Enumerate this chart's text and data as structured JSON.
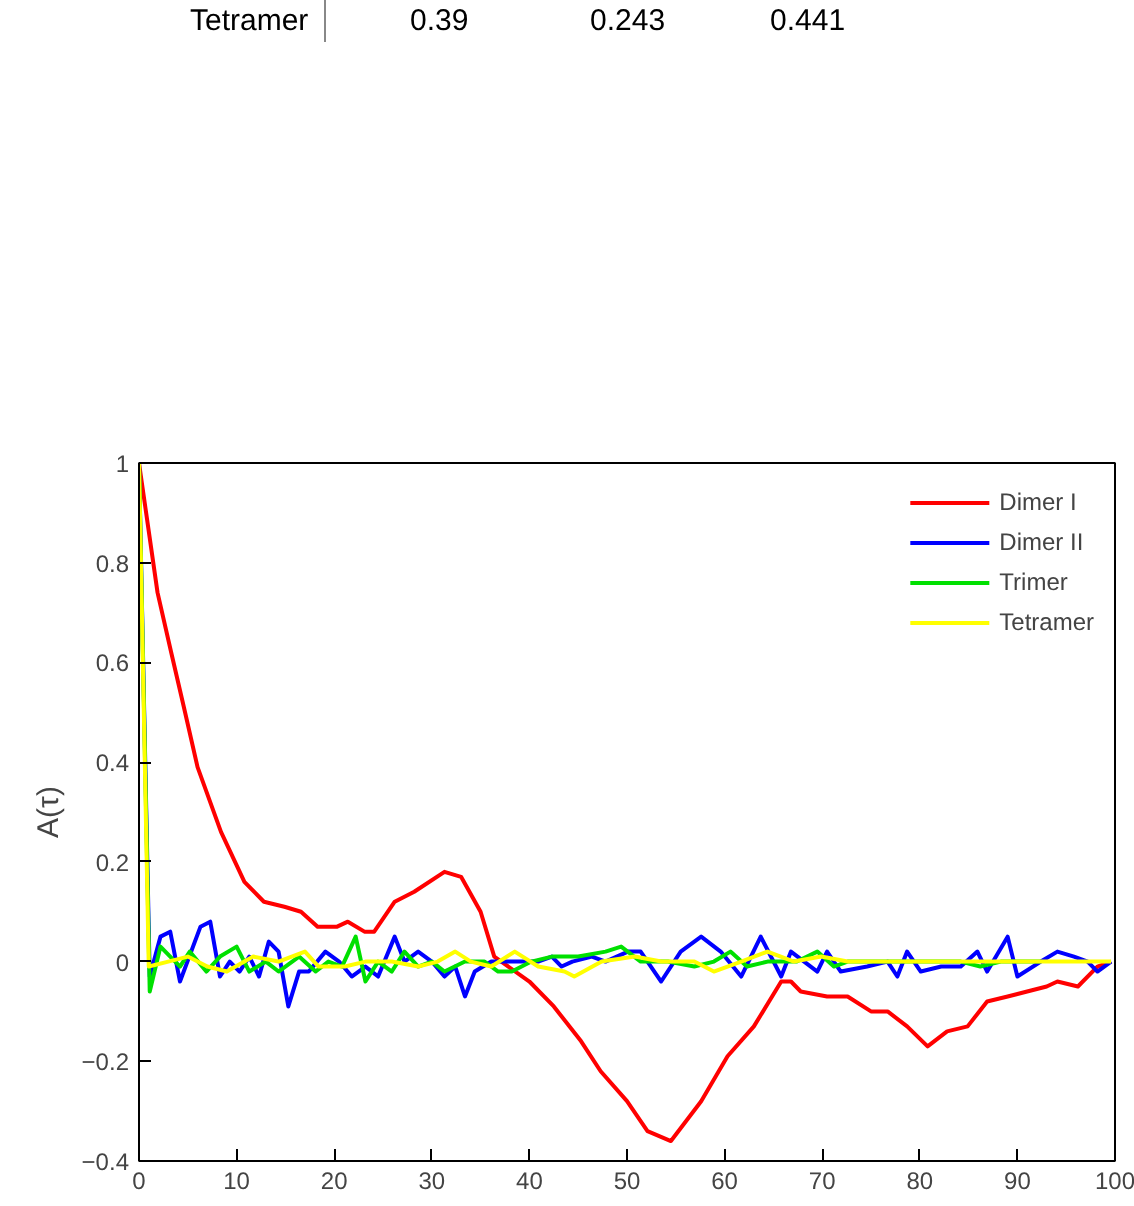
{
  "chart_data": {
    "type": "line",
    "annotations": [
      "Tetramer",
      "0.39",
      "0.243",
      "0.441"
    ],
    "ylabel": "A(τ)",
    "xlim": [
      0,
      100
    ],
    "ylim": [
      -0.4,
      1
    ],
    "xticks": [
      0,
      10,
      20,
      30,
      40,
      50,
      60,
      70,
      80,
      90,
      100
    ],
    "yticks": [
      {
        "value": -0.4,
        "label": "−0.4"
      },
      {
        "value": -0.2,
        "label": "−0.2"
      },
      0,
      0.2,
      0.4,
      0.6,
      0.8,
      1
    ],
    "grid": false,
    "legend": "top right",
    "line_style": "solid",
    "series": [
      {
        "name": "Dimer I",
        "color": "#ff0000",
        "x": [
          0,
          1.9,
          3.3,
          4.6,
          6,
          8.4,
          10.8,
          12.8,
          14.9,
          16.6,
          18.3,
          20.3,
          21.4,
          23.1,
          24.1,
          26.2,
          28.2,
          31.3,
          33,
          35,
          36.4,
          40,
          42.5,
          45.3,
          47.3,
          50,
          52.1,
          54.5,
          57.6,
          60.3,
          63,
          65.8,
          66.8,
          67.8,
          70.5,
          72.6,
          75,
          76.7,
          78.7,
          80.8,
          82.8,
          84.9,
          86.9,
          89,
          91,
          93,
          94.1,
          96.2,
          98.2,
          99.6
        ],
        "values": [
          1,
          0.74,
          0.62,
          0.51,
          0.39,
          0.26,
          0.16,
          0.12,
          0.11,
          0.1,
          0.07,
          0.07,
          0.08,
          0.06,
          0.06,
          0.12,
          0.14,
          0.18,
          0.17,
          0.1,
          0.01,
          -0.04,
          -0.09,
          -0.16,
          -0.22,
          -0.28,
          -0.34,
          -0.36,
          -0.28,
          -0.19,
          -0.13,
          -0.04,
          -0.04,
          -0.06,
          -0.07,
          -0.07,
          -0.1,
          -0.1,
          -0.13,
          -0.17,
          -0.14,
          -0.13,
          -0.08,
          -0.07,
          -0.06,
          -0.05,
          -0.04,
          -0.05,
          -0.01,
          0
        ]
      },
      {
        "name": "Dimer II",
        "color": "#0000ff",
        "x": [
          0,
          1.1,
          2.2,
          3.2,
          4.2,
          6.3,
          7.3,
          8.3,
          9.3,
          10.3,
          11.3,
          12.3,
          13.3,
          14.3,
          15.3,
          16.4,
          17.4,
          19.1,
          20.5,
          21.8,
          23.2,
          24.5,
          26.2,
          27.2,
          28.6,
          30,
          31.3,
          32.4,
          33.4,
          34.4,
          36.1,
          37.5,
          38.9,
          40.9,
          42.3,
          43.3,
          44.4,
          46.4,
          47.8,
          50.1,
          51.4,
          53.5,
          55.5,
          57.6,
          59.6,
          61.7,
          63.7,
          65.8,
          66.8,
          69.5,
          70.5,
          71.9,
          74.6,
          76.7,
          77.7,
          78.7,
          80.1,
          82.2,
          84.2,
          85.9,
          86.9,
          89,
          90,
          92.4,
          94.1,
          95.8,
          97.2,
          98.2,
          99.6
        ],
        "values": [
          1,
          -0.03,
          0.05,
          0.06,
          -0.04,
          0.07,
          0.08,
          -0.03,
          0,
          -0.02,
          0.01,
          -0.03,
          0.04,
          0.02,
          -0.09,
          -0.02,
          -0.02,
          0.02,
          0,
          -0.03,
          -0.01,
          -0.03,
          0.05,
          0,
          0.02,
          0,
          -0.03,
          -0.01,
          -0.07,
          -0.02,
          0,
          0,
          0,
          0,
          0.01,
          -0.01,
          0,
          0.01,
          0,
          0.02,
          0.02,
          -0.04,
          0.02,
          0.05,
          0.02,
          -0.03,
          0.05,
          -0.03,
          0.02,
          -0.02,
          0.02,
          -0.02,
          -0.01,
          0,
          -0.03,
          0.02,
          -0.02,
          -0.01,
          -0.01,
          0.02,
          -0.02,
          0.05,
          -0.03,
          0,
          0.02,
          0.01,
          0,
          -0.02,
          0
        ]
      },
      {
        "name": "Trimer",
        "color": "#00e000",
        "x": [
          0,
          1.1,
          2.2,
          4.2,
          5.2,
          6.9,
          8.3,
          10,
          11.3,
          13,
          14.3,
          16.4,
          18.1,
          19.4,
          20.8,
          22.2,
          23.2,
          24.5,
          25.9,
          27.2,
          28.6,
          30,
          31.3,
          33.4,
          35.4,
          36.8,
          38.2,
          40.2,
          42.3,
          45,
          47.8,
          49.4,
          51.4,
          54.2,
          56.9,
          58.9,
          60.6,
          62.3,
          64.4,
          67.4,
          69.5,
          71.2,
          72.6,
          75.3,
          78.1,
          81.5,
          84.2,
          86.2,
          88.3,
          92.4
        ],
        "values": [
          1,
          -0.06,
          0.03,
          -0.01,
          0.02,
          -0.02,
          0.01,
          0.03,
          -0.02,
          0,
          -0.02,
          0.01,
          -0.02,
          0,
          -0.01,
          0.05,
          -0.04,
          0,
          -0.02,
          0.02,
          -0.01,
          0,
          -0.02,
          0,
          0,
          -0.02,
          -0.02,
          0,
          0.01,
          0.01,
          0.02,
          0.03,
          0,
          0,
          -0.01,
          0,
          0.02,
          -0.01,
          0,
          0,
          0.02,
          -0.01,
          0,
          0,
          0,
          0,
          0,
          -0.01,
          0,
          0
        ]
      },
      {
        "name": "Tetramer",
        "color": "#ffff00",
        "x": [
          0,
          1,
          3,
          5,
          7,
          9,
          11.7,
          14.3,
          17,
          18.4,
          21.1,
          23.2,
          25.9,
          28.6,
          30.6,
          32.4,
          34,
          36.1,
          38.5,
          40.9,
          43.6,
          44.6,
          47.4,
          50.8,
          53.5,
          56.9,
          58.9,
          61.7,
          64.4,
          67.1,
          69.9,
          72.6,
          76,
          79.5,
          82.8,
          86.9,
          91,
          95.1,
          99.6
        ],
        "values": [
          1,
          -0.01,
          0,
          0.01,
          -0.01,
          -0.02,
          0.01,
          0,
          0.02,
          -0.01,
          -0.01,
          0,
          0,
          -0.01,
          0,
          0.02,
          0,
          -0.01,
          0.02,
          -0.01,
          -0.02,
          -0.03,
          0,
          0.01,
          0,
          0,
          -0.02,
          0,
          0.02,
          0,
          0.01,
          0,
          0,
          0,
          0,
          0,
          0,
          0,
          0
        ]
      }
    ]
  }
}
